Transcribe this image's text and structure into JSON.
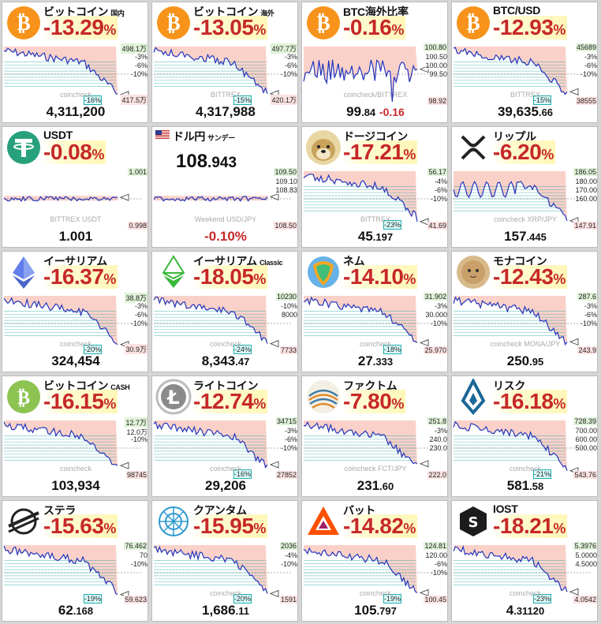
{
  "tiles": [
    {
      "name": "ビットコイン",
      "sub": "国内",
      "pct": "-13.29",
      "unit": "%",
      "price": "4,311,200",
      "dec": "",
      "icon": "bitcoin-icon",
      "logoColor": "#f7931a",
      "top": "498.1万",
      "low": "417.5万",
      "mid": [
        "-3%",
        "-6%",
        "-10%"
      ],
      "pin": "-16%",
      "wm": "coincheck"
    },
    {
      "name": "ビットコイン",
      "sub": "海外",
      "pct": "-13.05",
      "unit": "%",
      "price": "4,317,988",
      "dec": "",
      "icon": "bitcoin-icon",
      "logoColor": "#f7931a",
      "top": "497.7万",
      "low": "420.1万",
      "mid": [
        "-3%",
        "-6%",
        "-10%"
      ],
      "pin": "-15%",
      "wm": "BITTREX"
    },
    {
      "name": "BTC海外比率",
      "sub": "",
      "pct": "-0.16",
      "unit": "%",
      "price": "99",
      "dec": ".84",
      "extra": "-0.16",
      "icon": "bitcoin-icon",
      "logoColor": "#f7931a",
      "top": "100.80",
      "low": "98.92",
      "mid": [
        "100.50",
        "100.00",
        "99.50"
      ],
      "pin": "",
      "wm": "coincheck/BITTREX"
    },
    {
      "name": "BTC/USD",
      "sub": "",
      "pct": "-12.93",
      "unit": "%",
      "price": "39,635",
      "dec": ".66",
      "icon": "bitcoin-icon",
      "logoColor": "#f7931a",
      "top": "45689",
      "low": "38555",
      "mid": [
        "-3%",
        "-6%",
        "-10%"
      ],
      "pin": "-15%",
      "wm": "BITTREX"
    },
    {
      "name": "USDT",
      "sub": "",
      "pct": "-0.08",
      "unit": "%",
      "price": "1.001",
      "dec": "",
      "icon": "tether-icon",
      "logoColor": "#26a17b",
      "top": "1.001",
      "low": "0.998",
      "mid": [],
      "pin": "",
      "wm": "BITTREX USDT"
    },
    {
      "name": "ドル円",
      "sub": "サンデー",
      "pct": "",
      "unit": "",
      "price": "-0.10%",
      "dec": "",
      "big": "108",
      "bigdec": ".943",
      "icon": "us-flag-icon",
      "logoColor": "#fff",
      "top": "109.50",
      "low": "108.50",
      "mid": [
        "109.10",
        "108.83"
      ],
      "pin": "",
      "wm": "Weekend USD/JPY"
    },
    {
      "name": "ドージコイン",
      "sub": "",
      "pct": "-17.21",
      "unit": "%",
      "price": "45",
      "dec": ".197",
      "icon": "doge-icon",
      "logoColor": "#c9a35b",
      "top": "56.17",
      "low": "41.69",
      "mid": [
        "-4%",
        "-6%",
        "-10%"
      ],
      "pin": "-23%",
      "wm": "BITTREX"
    },
    {
      "name": "リップル",
      "sub": "",
      "pct": "-6.20",
      "unit": "%",
      "price": "157",
      "dec": ".445",
      "icon": "xrp-icon",
      "logoColor": "#222",
      "top": "186.05",
      "low": "147.91",
      "mid": [
        "180.00",
        "170.00",
        "160.00"
      ],
      "pin": "",
      "wm": "coincheck XRP/JPY"
    },
    {
      "name": "イーサリアム",
      "sub": "",
      "pct": "-16.37",
      "unit": "%",
      "price": "324,454",
      "dec": "",
      "icon": "ethereum-icon",
      "logoColor": "#627eea",
      "top": "38.8万",
      "low": "30.9万",
      "mid": [
        "-3%",
        "-6%",
        "-10%"
      ],
      "pin": "-20%",
      "wm": "coincheck"
    },
    {
      "name": "イーサリアム",
      "sub": "Classic",
      "pct": "-18.05",
      "unit": "%",
      "price": "8,343",
      "dec": ".47",
      "icon": "etc-icon",
      "logoColor": "#3ab83a",
      "top": "10230",
      "low": "7733",
      "mid": [
        "-10%",
        "8000"
      ],
      "pin": "-24%",
      "wm": "coincheck"
    },
    {
      "name": "ネム",
      "sub": "",
      "pct": "-14.10",
      "unit": "%",
      "price": "27",
      "dec": ".333",
      "icon": "nem-icon",
      "logoColor": "#67b2e8",
      "top": "31.902",
      "low": "25.970",
      "mid": [
        "-3%",
        "30.000",
        "-10%"
      ],
      "pin": "-18%",
      "wm": "coincheck"
    },
    {
      "name": "モナコイン",
      "sub": "",
      "pct": "-12.43",
      "unit": "%",
      "price": "250",
      "dec": ".95",
      "icon": "mona-icon",
      "logoColor": "#d8b98a",
      "top": "287.6",
      "low": "243.9",
      "mid": [
        "-3%",
        "-6%",
        "-10%"
      ],
      "pin": "",
      "wm": "coincheck MONA/JPY"
    },
    {
      "name": "ビットコイン",
      "sub": "CASH",
      "pct": "-16.15",
      "unit": "%",
      "price": "103,934",
      "dec": "",
      "icon": "bitcoin-cash-icon",
      "logoColor": "#8dc351",
      "top": "12.7万",
      "low": "98745",
      "mid": [
        "12.0万",
        "-10%"
      ],
      "pin": "",
      "wm": "coincheck"
    },
    {
      "name": "ライトコイン",
      "sub": "",
      "pct": "-12.74",
      "unit": "%",
      "price": "29,206",
      "dec": "",
      "icon": "litecoin-icon",
      "logoColor": "#bfbbbb",
      "top": "34715",
      "low": "27852",
      "mid": [
        "-3%",
        "-6%",
        "-10%"
      ],
      "pin": "-16%",
      "wm": "coincheck"
    },
    {
      "name": "ファクトム",
      "sub": "",
      "pct": "-7.80",
      "unit": "%",
      "price": "231",
      "dec": ".60",
      "icon": "factom-icon",
      "logoColor": "#417ba4",
      "top": "251.8",
      "low": "222.0",
      "mid": [
        "-3%",
        "240.0",
        "230.0"
      ],
      "pin": "",
      "wm": "coincheck FCT/JPY"
    },
    {
      "name": "リスク",
      "sub": "",
      "pct": "-16.18",
      "unit": "%",
      "price": "581",
      "dec": ".58",
      "icon": "lisk-icon",
      "logoColor": "#1a6896",
      "top": "728.39",
      "low": "543.76",
      "mid": [
        "700.00",
        "600.00",
        "500.00"
      ],
      "pin": "-21%",
      "wm": "coincheck"
    },
    {
      "name": "ステラ",
      "sub": "",
      "pct": "-15.63",
      "unit": "%",
      "price": "62",
      "dec": ".168",
      "icon": "stellar-icon",
      "logoColor": "#222",
      "top": "76.462",
      "low": "59.623",
      "mid": [
        "70",
        "-10%"
      ],
      "pin": "-19%",
      "wm": ""
    },
    {
      "name": "クアンタム",
      "sub": "",
      "pct": "-15.95",
      "unit": "%",
      "price": "1,686",
      "dec": ".11",
      "icon": "qtum-icon",
      "logoColor": "#2e9ad0",
      "top": "2036",
      "low": "1591",
      "mid": [
        "-4%",
        "-10%"
      ],
      "pin": "-20%",
      "wm": "coincheck"
    },
    {
      "name": "バット",
      "sub": "",
      "pct": "-14.82",
      "unit": "%",
      "price": "105",
      "dec": ".797",
      "icon": "bat-icon",
      "logoColor": "#ff5000",
      "top": "124.81",
      "low": "100.45",
      "mid": [
        "120.00",
        "-6%",
        "-10%"
      ],
      "pin": "-19%",
      "wm": "coincheck"
    },
    {
      "name": "IOST",
      "sub": "",
      "pct": "-18.21",
      "unit": "%",
      "price": "4",
      "dec": ".31120",
      "icon": "iost-icon",
      "logoColor": "#1c1c1c",
      "top": "5.3976",
      "low": "4.0542",
      "mid": [
        "5.0000",
        "4.5000"
      ],
      "pin": "-23%",
      "wm": "coincheck"
    }
  ]
}
